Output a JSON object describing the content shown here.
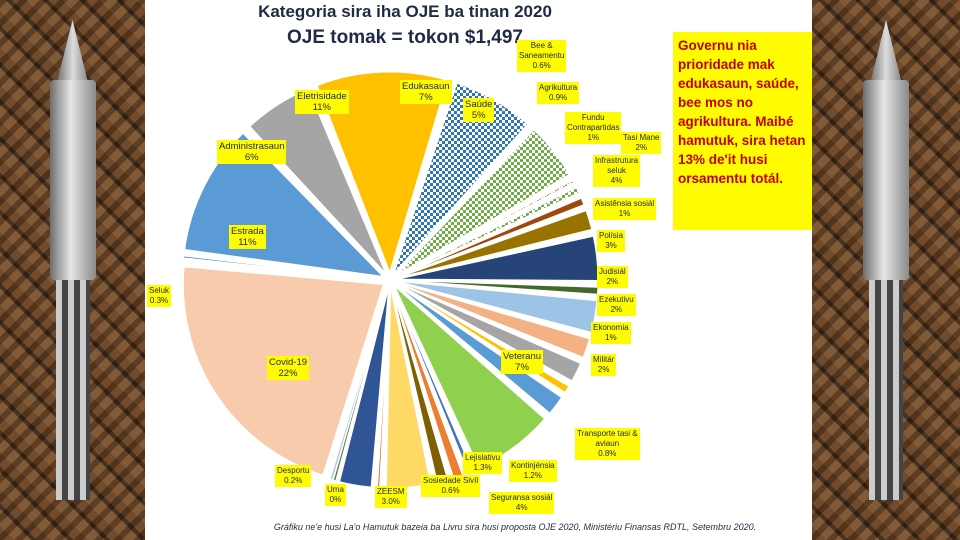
{
  "chart_data": {
    "type": "pie",
    "title": "Kategoria sira iha OJE ba tinan 2020",
    "subtitle": "OJE tomak = tokon $1,497",
    "slices": [
      {
        "label": "Eletrisidade",
        "value_text": "11%",
        "value": 11,
        "color": "#ffc000",
        "pattern": "solid"
      },
      {
        "label": "Edukasaun",
        "value_text": "7%",
        "value": 7,
        "color": "#2e75b6",
        "pattern": "check"
      },
      {
        "label": "Saúde",
        "value_text": "5%",
        "value": 5,
        "color": "#70ad47",
        "pattern": "check"
      },
      {
        "label": "Bee &\nSaneamentu",
        "value_text": "0.6%",
        "value": 0.6,
        "color": "#c55a11",
        "pattern": "check"
      },
      {
        "label": "Agrikultura",
        "value_text": "0.9%",
        "value": 0.9,
        "color": "#70ad47",
        "pattern": "check"
      },
      {
        "label": "Fundu\nContrapartidas",
        "value_text": "1%",
        "value": 1,
        "color": "#9e480e",
        "pattern": "solid"
      },
      {
        "label": "Tasi Mane",
        "value_text": "2%",
        "value": 2,
        "color": "#997300",
        "pattern": "solid"
      },
      {
        "label": "Infrastrutura\nseluk",
        "value_text": "4%",
        "value": 4,
        "color": "#264478",
        "pattern": "solid"
      },
      {
        "label": "Asistênsia sosiál",
        "value_text": "1%",
        "value": 1,
        "color": "#43682b",
        "pattern": "solid"
      },
      {
        "label": "Polísia",
        "value_text": "3%",
        "value": 3,
        "color": "#9dc3e6",
        "pattern": "solid"
      },
      {
        "label": "Judisiál",
        "value_text": "2%",
        "value": 2,
        "color": "#f4b183",
        "pattern": "solid"
      },
      {
        "label": "Ezekutivu",
        "value_text": "2%",
        "value": 2,
        "color": "#a5a5a5",
        "pattern": "solid"
      },
      {
        "label": "Ekonomia",
        "value_text": "1%",
        "value": 1,
        "color": "#ffc000",
        "pattern": "solid"
      },
      {
        "label": "Militár",
        "value_text": "2%",
        "value": 2,
        "color": "#5b9bd5",
        "pattern": "solid"
      },
      {
        "label": "Veteranu",
        "value_text": "7%",
        "value": 7,
        "color": "#8fd14f",
        "pattern": "solid"
      },
      {
        "label": "Transporte tasi &\naviaun",
        "value_text": "0.8%",
        "value": 0.8,
        "color": "#4472c4",
        "pattern": "solid"
      },
      {
        "label": "Kontinjénsia",
        "value_text": "1.2%",
        "value": 1.2,
        "color": "#ed7d31",
        "pattern": "solid"
      },
      {
        "label": "Lejislativu",
        "value_text": "1.3%",
        "value": 1.3,
        "color": "#7f6000",
        "pattern": "solid"
      },
      {
        "label": "Seguransa sosiál",
        "value_text": "4%",
        "value": 4,
        "color": "#ffd966",
        "pattern": "solid"
      },
      {
        "label": "Sosiedade Sivíl",
        "value_text": "0.6%",
        "value": 0.6,
        "color": "#c55a11",
        "pattern": "solid"
      },
      {
        "label": "ZEESM",
        "value_text": "3.0%",
        "value": 3,
        "color": "#2f5597",
        "pattern": "solid"
      },
      {
        "label": "Uma",
        "value_text": "0%",
        "value": 0,
        "color": "#548235",
        "pattern": "solid"
      },
      {
        "label": "Desportu",
        "value_text": "0.2%",
        "value": 0.2,
        "color": "#9dc3e6",
        "pattern": "solid"
      },
      {
        "label": "Covid-19",
        "value_text": "22%",
        "value": 22,
        "color": "#f8cbad",
        "pattern": "solid"
      },
      {
        "label": "Seluk",
        "value_text": "0.3%",
        "value": 0.3,
        "color": "#2e75b6",
        "pattern": "solid"
      },
      {
        "label": "Estrada",
        "value_text": "11%",
        "value": 11,
        "color": "#5b9bd5",
        "pattern": "solid"
      },
      {
        "label": "Administrasaun",
        "value_text": "6%",
        "value": 6,
        "color": "#a5a5a5",
        "pattern": "solid"
      }
    ]
  },
  "note": "Governu nia prioridade mak edukasaun, saúde, bee mos no agrikultura. Maibé hamutuk, sira hetan 13% de'it husi orsamentu totál.",
  "caption": "Gráfiku ne'e husi La'o Hamutuk bazeia ba Livru sira husi proposta OJE 2020, Ministériu Finansas RDTL, Setembru 2020."
}
